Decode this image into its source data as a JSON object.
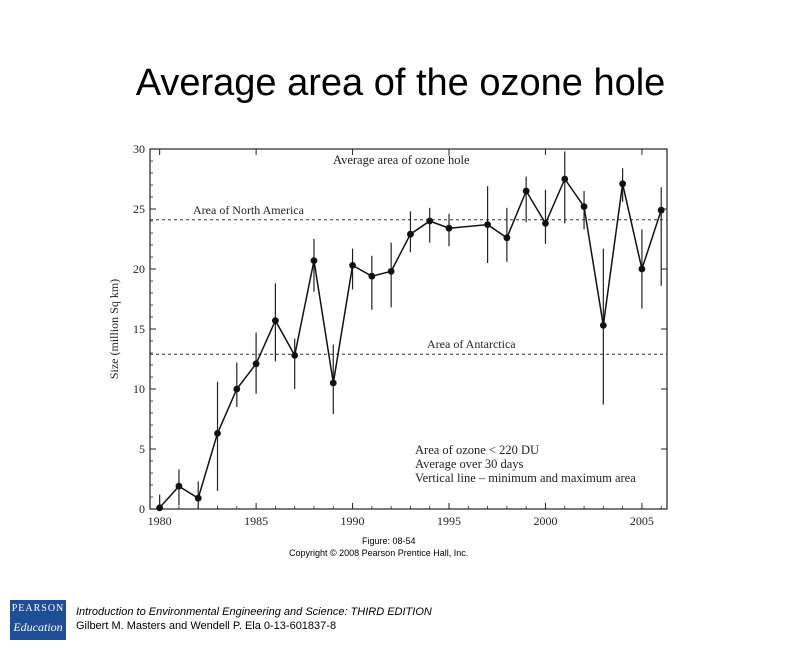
{
  "slide": {
    "title": "Average area of the ozone hole"
  },
  "figure": {
    "number": "Figure: 08-54",
    "copyright": "Copyright © 2008 Pearson Prentice Hall, Inc."
  },
  "footer": {
    "book": "Introduction to Environmental Engineering and Science: THIRD EDITION",
    "authors": "Gilbert M. Masters and Wendell P. Ela  0-13-601837-8"
  },
  "logo": {
    "line1": "PEARSON",
    "line2": "Education"
  },
  "chart_data": {
    "type": "line",
    "title": "Average area of ozone hole",
    "xlabel": "",
    "ylabel": "Size (million Sq km)",
    "xlim": [
      1979.5,
      2006.3
    ],
    "ylim": [
      0,
      30
    ],
    "xticks": [
      1980,
      1985,
      1990,
      1995,
      2000,
      2005
    ],
    "yticks": [
      0,
      5,
      10,
      15,
      20,
      25,
      30
    ],
    "grid": false,
    "series": [
      {
        "points": [
          {
            "x": 1980,
            "y": 0.1,
            "min": 0.0,
            "max": 1.2
          },
          {
            "x": 1981,
            "y": 1.9,
            "min": 0.3,
            "max": 3.3
          },
          {
            "x": 1982,
            "y": 0.9,
            "min": 0.0,
            "max": 2.3
          },
          {
            "x": 1983,
            "y": 6.3,
            "min": 1.5,
            "max": 10.6
          },
          {
            "x": 1984,
            "y": 10.0,
            "min": 8.5,
            "max": 12.2
          },
          {
            "x": 1985,
            "y": 12.1,
            "min": 9.6,
            "max": 14.7
          },
          {
            "x": 1986,
            "y": 15.7,
            "min": 12.3,
            "max": 18.8
          },
          {
            "x": 1987,
            "y": 12.8,
            "min": 10.0,
            "max": 14.2
          },
          {
            "x": 1988,
            "y": 20.7,
            "min": 18.1,
            "max": 22.5
          },
          {
            "x": 1989,
            "y": 10.5,
            "min": 7.9,
            "max": 13.7
          },
          {
            "x": 1990,
            "y": 20.3,
            "min": 18.3,
            "max": 21.7
          },
          {
            "x": 1991,
            "y": 19.4,
            "min": 16.6,
            "max": 21.1
          },
          {
            "x": 1992,
            "y": 19.8,
            "min": 16.8,
            "max": 22.2
          },
          {
            "x": 1993,
            "y": 22.9,
            "min": 21.4,
            "max": 24.8
          },
          {
            "x": 1994,
            "y": 24.0,
            "min": 22.2,
            "max": 25.1
          },
          {
            "x": 1995,
            "y": 23.4,
            "min": 21.9,
            "max": 24.6
          },
          {
            "x": 1997,
            "y": 23.7,
            "min": 20.5,
            "max": 26.9
          },
          {
            "x": 1998,
            "y": 22.6,
            "min": 20.6,
            "max": 25.1
          },
          {
            "x": 1999,
            "y": 26.5,
            "min": 23.9,
            "max": 27.7
          },
          {
            "x": 2000,
            "y": 23.8,
            "min": 22.1,
            "max": 26.6
          },
          {
            "x": 2001,
            "y": 27.5,
            "min": 23.8,
            "max": 29.8
          },
          {
            "x": 2002,
            "y": 25.2,
            "min": 23.3,
            "max": 26.5
          },
          {
            "x": 2003,
            "y": 15.3,
            "min": 8.7,
            "max": 21.7
          },
          {
            "x": 2004,
            "y": 27.1,
            "min": 25.6,
            "max": 28.4
          },
          {
            "x": 2005,
            "y": 20.0,
            "min": 16.7,
            "max": 23.3
          },
          {
            "x": 2006,
            "y": 24.9,
            "min": 18.6,
            "max": 26.8
          }
        ]
      }
    ],
    "reference_lines": [
      {
        "label": "Area of North America",
        "y": 24.1
      },
      {
        "label": "Area of Antarctica",
        "y": 12.9
      }
    ],
    "annotations": [
      "Area of ozone < 220 DU",
      "Average over 30 days",
      "Vertical line – minimum and maximum area"
    ]
  }
}
